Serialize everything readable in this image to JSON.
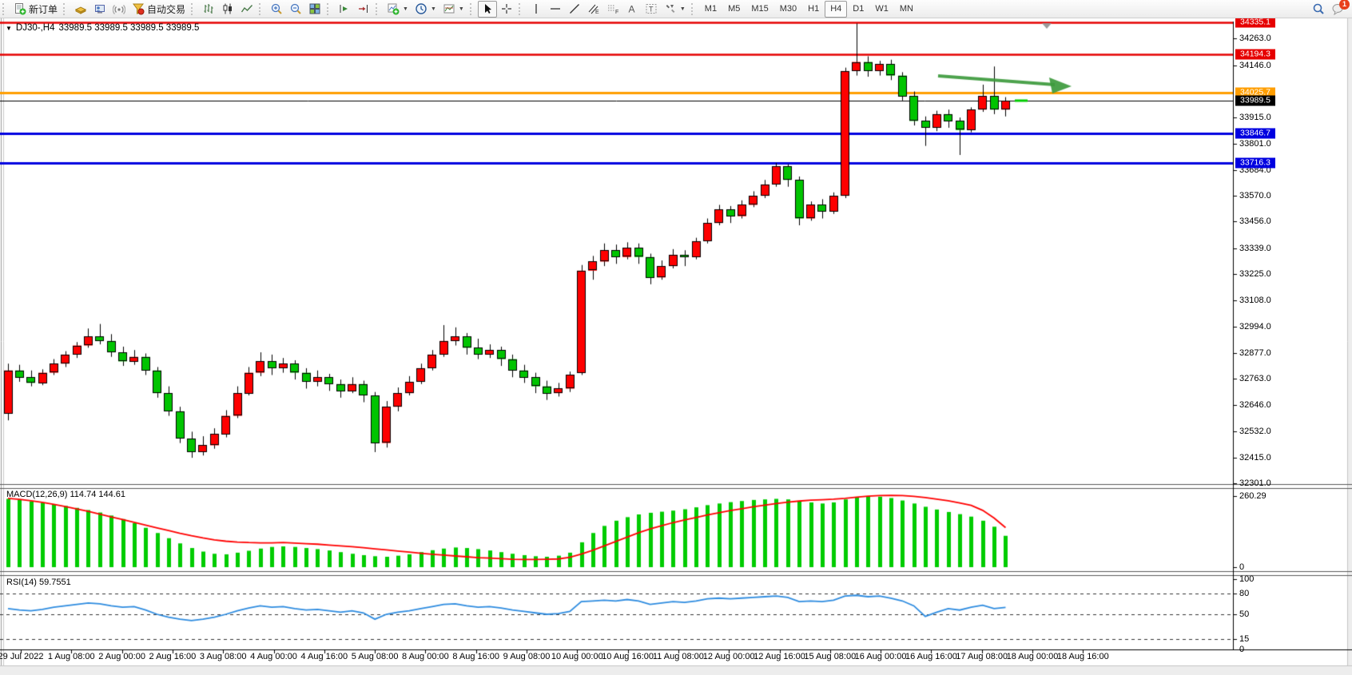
{
  "toolbar": {
    "new_order": "新订单",
    "auto_trading": "自动交易",
    "timeframes": [
      "M1",
      "M5",
      "M15",
      "M30",
      "H1",
      "H4",
      "D1",
      "W1",
      "MN"
    ],
    "active_timeframe": "H4",
    "badge_count": "1",
    "glyph_e": "E",
    "glyph_f": "F",
    "glyph_a": "A",
    "glyph_t": "T",
    "icon_names": [
      "new-order",
      "bricks",
      "publisher",
      "signal",
      "auto-trading",
      "bar-chart",
      "candlestick-chart",
      "line-chart",
      "zoom-in",
      "zoom-out",
      "tile-windows",
      "auto-scroll",
      "chart-shift",
      "indicators",
      "periods",
      "templates",
      "cursor",
      "crosshair",
      "vertical-line",
      "horizontal-line",
      "trendline",
      "equidistant-channel",
      "fibonacci",
      "text",
      "text-label",
      "arrows",
      "search",
      "chat"
    ]
  },
  "chart": {
    "title": {
      "symbol": "DJ30-,H4",
      "quotes": "33989.5 33989.5 33989.5 33989.5"
    },
    "price_axis": {
      "ticks": [
        {
          "label": "34263.0",
          "price": 34263.0
        },
        {
          "label": "34146.0",
          "price": 34146.0
        },
        {
          "label": "33915.0",
          "price": 33915.0
        },
        {
          "label": "33801.0",
          "price": 33801.0
        },
        {
          "label": "33684.0",
          "price": 33684.0
        },
        {
          "label": "33570.0",
          "price": 33570.0
        },
        {
          "label": "33456.0",
          "price": 33456.0
        },
        {
          "label": "33339.0",
          "price": 33339.0
        },
        {
          "label": "33225.0",
          "price": 33225.0
        },
        {
          "label": "33108.0",
          "price": 33108.0
        },
        {
          "label": "32994.0",
          "price": 32994.0
        },
        {
          "label": "32877.0",
          "price": 32877.0
        },
        {
          "label": "32763.0",
          "price": 32763.0
        },
        {
          "label": "32646.0",
          "price": 32646.0
        },
        {
          "label": "32532.0",
          "price": 32532.0
        },
        {
          "label": "32415.0",
          "price": 32415.0
        },
        {
          "label": "32301.0",
          "price": 32301.0
        }
      ]
    },
    "time_axis": {
      "labels": [
        "29 Jul 2022",
        "1 Aug 08:00",
        "2 Aug 00:00",
        "2 Aug 16:00",
        "3 Aug 08:00",
        "4 Aug 00:00",
        "4 Aug 16:00",
        "5 Aug 08:00",
        "8 Aug 00:00",
        "8 Aug 16:00",
        "9 Aug 08:00",
        "10 Aug 00:00",
        "10 Aug 16:00",
        "11 Aug 08:00",
        "12 Aug 00:00",
        "12 Aug 16:00",
        "15 Aug 08:00",
        "16 Aug 00:00",
        "16 Aug 16:00",
        "17 Aug 08:00",
        "18 Aug 00:00",
        "18 Aug 16:00"
      ]
    }
  },
  "indicators": {
    "macd": {
      "title": "MACD(12,26,9)",
      "values": "114.74 144.61",
      "axis": [
        {
          "label": "260.29",
          "value": 260.29
        },
        {
          "label": "0",
          "value": 0
        }
      ]
    },
    "rsi": {
      "title": "RSI(14)",
      "value": "59.7551",
      "axis": [
        {
          "label": "100",
          "value": 100
        },
        {
          "label": "80",
          "value": 80
        },
        {
          "label": "50",
          "value": 50
        },
        {
          "label": "15",
          "value": 15
        },
        {
          "label": "0",
          "value": 0
        }
      ],
      "dashed_levels": [
        80,
        50,
        15
      ]
    }
  },
  "chart_data": {
    "type": "candlestick",
    "symbol": "DJ30-",
    "timeframe": "H4",
    "last_price": 33989.5,
    "colors": {
      "up": "#fe0000",
      "down": "#00c400",
      "wick": "#000000",
      "macd_hist": "#00cc00",
      "macd_signal": "#ff0000",
      "rsi_line": "#2e8ce0",
      "arrow": "#3d9a3d",
      "last_price_marker": "#00cc00"
    },
    "levels": [
      {
        "price": 34335.1,
        "color": "#e60000",
        "width": 2.5,
        "badge": true
      },
      {
        "price": 34194.3,
        "color": "#e60000",
        "width": 2.5,
        "badge": true
      },
      {
        "price": 34025.7,
        "color": "#ff9e00",
        "width": 3,
        "badge": true
      },
      {
        "price": 33989.5,
        "color": "#000000",
        "width": 1,
        "badge": true
      },
      {
        "price": 33846.7,
        "color": "#0000e0",
        "width": 3,
        "badge": true
      },
      {
        "price": 33716.3,
        "color": "#0000e0",
        "width": 3,
        "badge": true
      }
    ],
    "ohlc": [
      [
        32610,
        32830,
        32580,
        32800
      ],
      [
        32800,
        32825,
        32750,
        32770
      ],
      [
        32770,
        32800,
        32730,
        32745
      ],
      [
        32745,
        32805,
        32735,
        32790
      ],
      [
        32790,
        32850,
        32780,
        32830
      ],
      [
        32830,
        32885,
        32815,
        32870
      ],
      [
        32870,
        32925,
        32855,
        32910
      ],
      [
        32910,
        32985,
        32900,
        32950
      ],
      [
        32950,
        33005,
        32915,
        32930
      ],
      [
        32930,
        32960,
        32860,
        32880
      ],
      [
        32880,
        32905,
        32820,
        32840
      ],
      [
        32840,
        32890,
        32825,
        32860
      ],
      [
        32860,
        32875,
        32780,
        32800
      ],
      [
        32800,
        32815,
        32680,
        32700
      ],
      [
        32700,
        32730,
        32600,
        32620
      ],
      [
        32620,
        32640,
        32480,
        32500
      ],
      [
        32500,
        32530,
        32415,
        32440
      ],
      [
        32440,
        32510,
        32425,
        32470
      ],
      [
        32470,
        32545,
        32455,
        32520
      ],
      [
        32520,
        32625,
        32505,
        32600
      ],
      [
        32600,
        32730,
        32590,
        32700
      ],
      [
        32700,
        32815,
        32690,
        32790
      ],
      [
        32790,
        32880,
        32775,
        32840
      ],
      [
        32840,
        32870,
        32780,
        32810
      ],
      [
        32810,
        32855,
        32790,
        32830
      ],
      [
        32830,
        32845,
        32760,
        32790
      ],
      [
        32790,
        32810,
        32720,
        32750
      ],
      [
        32750,
        32800,
        32730,
        32770
      ],
      [
        32770,
        32785,
        32710,
        32740
      ],
      [
        32740,
        32760,
        32680,
        32710
      ],
      [
        32710,
        32770,
        32700,
        32740
      ],
      [
        32740,
        32755,
        32660,
        32690
      ],
      [
        32690,
        32705,
        32440,
        32480
      ],
      [
        32480,
        32665,
        32460,
        32640
      ],
      [
        32640,
        32725,
        32620,
        32700
      ],
      [
        32700,
        32775,
        32690,
        32750
      ],
      [
        32750,
        32830,
        32740,
        32810
      ],
      [
        32810,
        32890,
        32800,
        32870
      ],
      [
        32870,
        33000,
        32860,
        32930
      ],
      [
        32930,
        32990,
        32910,
        32950
      ],
      [
        32950,
        32965,
        32870,
        32900
      ],
      [
        32900,
        32940,
        32850,
        32870
      ],
      [
        32870,
        32915,
        32855,
        32890
      ],
      [
        32890,
        32905,
        32820,
        32850
      ],
      [
        32850,
        32870,
        32770,
        32800
      ],
      [
        32800,
        32825,
        32745,
        32770
      ],
      [
        32770,
        32790,
        32700,
        32730
      ],
      [
        32730,
        32755,
        32670,
        32700
      ],
      [
        32700,
        32745,
        32685,
        32720
      ],
      [
        32720,
        32795,
        32705,
        32780
      ],
      [
        32790,
        33265,
        32780,
        33240
      ],
      [
        33240,
        33305,
        33200,
        33280
      ],
      [
        33280,
        33360,
        33260,
        33330
      ],
      [
        33330,
        33355,
        33270,
        33300
      ],
      [
        33300,
        33365,
        33290,
        33340
      ],
      [
        33340,
        33360,
        33270,
        33300
      ],
      [
        33300,
        33315,
        33180,
        33210
      ],
      [
        33210,
        33285,
        33200,
        33260
      ],
      [
        33260,
        33335,
        33250,
        33310
      ],
      [
        33310,
        33330,
        33260,
        33300
      ],
      [
        33300,
        33385,
        33290,
        33370
      ],
      [
        33370,
        33470,
        33360,
        33450
      ],
      [
        33450,
        33530,
        33440,
        33510
      ],
      [
        33510,
        33525,
        33450,
        33480
      ],
      [
        33480,
        33550,
        33470,
        33530
      ],
      [
        33530,
        33590,
        33520,
        33570
      ],
      [
        33570,
        33640,
        33560,
        33620
      ],
      [
        33620,
        33715,
        33610,
        33700
      ],
      [
        33700,
        33710,
        33610,
        33640
      ],
      [
        33640,
        33655,
        33440,
        33470
      ],
      [
        33470,
        33545,
        33460,
        33530
      ],
      [
        33530,
        33555,
        33470,
        33500
      ],
      [
        33500,
        33585,
        33490,
        33570
      ],
      [
        33570,
        34135,
        33560,
        34120
      ],
      [
        34120,
        34330,
        34100,
        34160
      ],
      [
        34160,
        34185,
        34095,
        34120
      ],
      [
        34120,
        34165,
        34100,
        34150
      ],
      [
        34150,
        34170,
        34080,
        34100
      ],
      [
        34100,
        34115,
        33990,
        34010
      ],
      [
        34010,
        34030,
        33880,
        33900
      ],
      [
        33900,
        33920,
        33790,
        33870
      ],
      [
        33870,
        33945,
        33855,
        33930
      ],
      [
        33930,
        33950,
        33870,
        33900
      ],
      [
        33900,
        33915,
        33750,
        33860
      ],
      [
        33860,
        33960,
        33850,
        33950
      ],
      [
        33950,
        34060,
        33940,
        34010
      ],
      [
        34010,
        34140,
        33930,
        33950
      ],
      [
        33950,
        34005,
        33920,
        33989.5
      ]
    ],
    "macd_hist": [
      250,
      246,
      241,
      236,
      230,
      224,
      217,
      209,
      200,
      189,
      176,
      161,
      144,
      125,
      106,
      87,
      70,
      57,
      49,
      47,
      53,
      60,
      68,
      74,
      76,
      74,
      70,
      66,
      61,
      55,
      49,
      44,
      40,
      38,
      42,
      47,
      55,
      62,
      68,
      72,
      70,
      66,
      61,
      55,
      49,
      44,
      40,
      38,
      42,
      53,
      91,
      125,
      151,
      170,
      183,
      193,
      199,
      203,
      207,
      212,
      219,
      227,
      233,
      238,
      242,
      246,
      248,
      250,
      248,
      242,
      237,
      233,
      237,
      248,
      257,
      260.29,
      258,
      253,
      244,
      233,
      221,
      211,
      202,
      194,
      185,
      170,
      148,
      114.74
    ],
    "macd_signal": [
      252,
      248,
      243,
      237,
      230,
      222,
      213,
      204,
      194,
      184,
      174,
      164,
      154,
      144,
      134,
      124,
      115,
      107,
      100,
      95,
      92,
      90,
      89,
      89,
      90,
      88,
      86,
      84,
      81,
      78,
      75,
      71,
      67,
      63,
      59,
      55,
      51,
      47,
      44,
      41,
      38,
      35,
      33,
      31,
      29,
      28,
      28,
      29,
      30,
      36,
      48,
      62,
      78,
      94,
      110,
      126,
      140,
      152,
      163,
      173,
      182,
      191,
      199,
      207,
      214,
      221,
      227,
      233,
      238,
      242,
      245,
      247,
      249,
      252,
      256,
      260,
      262,
      263,
      262,
      259,
      255,
      249,
      243,
      235,
      226,
      208,
      180,
      144.61
    ],
    "rsi": [
      58,
      56,
      55,
      57,
      60,
      62,
      64,
      66,
      65,
      62,
      60,
      61,
      56,
      50,
      46,
      43,
      41,
      43,
      46,
      50,
      55,
      59,
      62,
      60,
      61,
      58,
      56,
      57,
      55,
      53,
      55,
      52,
      43,
      50,
      53,
      55,
      58,
      61,
      64,
      65,
      62,
      60,
      61,
      59,
      56,
      54,
      52,
      50,
      51,
      54,
      68,
      69,
      70,
      69,
      71,
      69,
      64,
      66,
      68,
      67,
      69,
      72,
      73,
      72,
      73,
      74,
      75,
      76,
      74,
      68,
      69,
      68,
      70,
      76,
      77,
      75,
      76,
      73,
      69,
      62,
      47,
      53,
      58,
      56,
      60,
      63,
      58,
      59.7551
    ]
  }
}
